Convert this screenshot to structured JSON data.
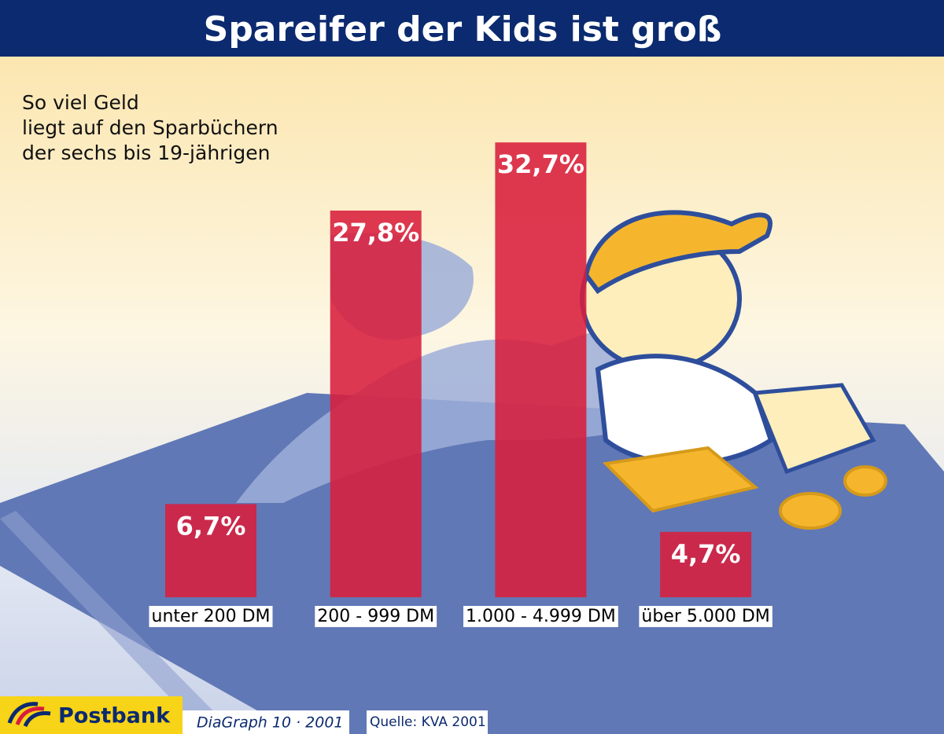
{
  "chart_data": {
    "type": "bar",
    "title": "Spareifer der Kids ist groß",
    "subtitle_lines": [
      "So viel Geld",
      "liegt auf den Sparbüchern",
      "der sechs bis 19-jährigen"
    ],
    "categories": [
      "unter 200 DM",
      "200 - 999 DM",
      "1.000 - 4.999 DM",
      "über 5.000 DM"
    ],
    "values": [
      6.7,
      27.8,
      32.7,
      4.7
    ],
    "value_labels": [
      "6,7%",
      "27,8%",
      "32,7%",
      "4,7%"
    ],
    "color": "#d81e3c",
    "footer": {
      "brand": "Postbank",
      "series": "DiaGraph 10 · 2001",
      "source": "Quelle: KVA 2001"
    }
  }
}
